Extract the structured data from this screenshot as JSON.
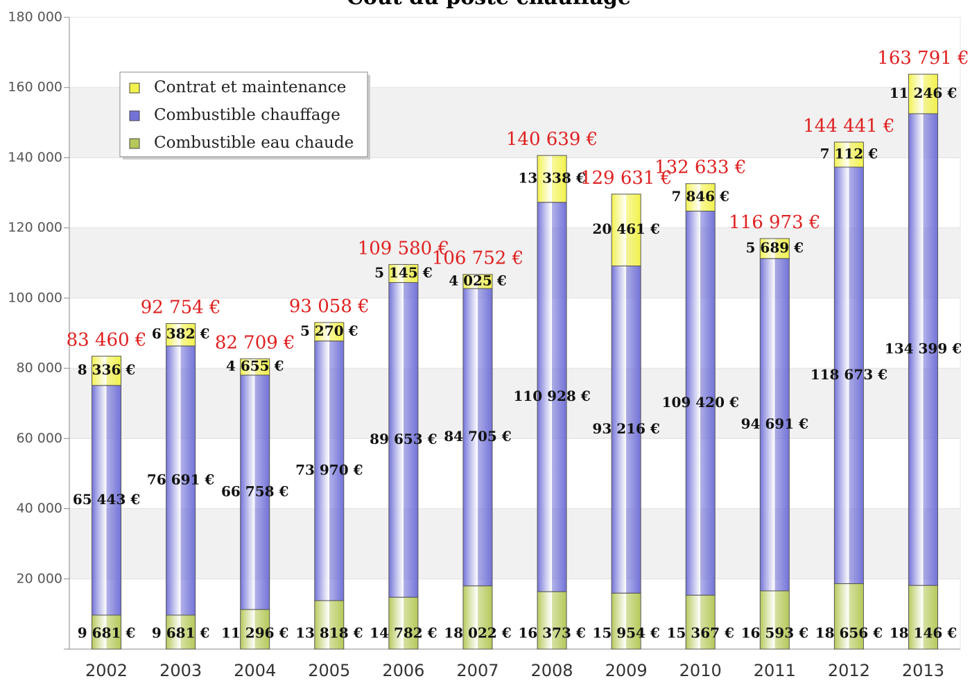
{
  "chart_data": {
    "type": "stacked_bar",
    "title": "Coût du poste chauffage",
    "categories": [
      "2002",
      "2003",
      "2004",
      "2005",
      "2006",
      "2007",
      "2008",
      "2009",
      "2010",
      "2011",
      "2012",
      "2013"
    ],
    "series": [
      {
        "name": "Combustible eau chaude",
        "color": "#b5c95a",
        "values": [
          9681,
          9681,
          11296,
          13818,
          14782,
          18022,
          16373,
          15954,
          15367,
          16593,
          18656,
          18146
        ],
        "value_labels": [
          "9 681 €",
          "9 681 €",
          "11 296 €",
          "13 818 €",
          "14 782 €",
          "18 022 €",
          "16 373 €",
          "15 954 €",
          "15 367 €",
          "16 593 €",
          "18 656 €",
          "18 146 €"
        ]
      },
      {
        "name": "Combustible chauffage",
        "color": "#7373d9",
        "values": [
          65443,
          76691,
          66758,
          73970,
          89653,
          84705,
          110928,
          93216,
          109420,
          94691,
          118673,
          134399
        ],
        "value_labels": [
          "65 443 €",
          "76 691 €",
          "66 758 €",
          "73 970 €",
          "89 653 €",
          "84 705 €",
          "110 928 €",
          "93 216 €",
          "109 420 €",
          "94 691 €",
          "118 673 €",
          "134 399 €"
        ]
      },
      {
        "name": "Contrat et maintenance",
        "color": "#f2f24d",
        "values": [
          8336,
          6382,
          4655,
          5270,
          5145,
          4025,
          13338,
          20461,
          7846,
          5689,
          7112,
          11246
        ],
        "value_labels": [
          "8 336 €",
          "6 382 €",
          "4 655 €",
          "5 270 €",
          "5 145 €",
          "4 025 €",
          "13 338 €",
          "20 461 €",
          "7 846 €",
          "5 689 €",
          "7 112 €",
          "11 246 €"
        ]
      }
    ],
    "totals": [
      83460,
      92754,
      82709,
      93058,
      109580,
      106752,
      140639,
      129631,
      132633,
      116973,
      144441,
      163791
    ],
    "total_labels": [
      "83 460 €",
      "92 754 €",
      "82 709 €",
      "93 058 €",
      "109 580 €",
      "106 752 €",
      "140 639 €",
      "129 631 €",
      "132 633 €",
      "116 973 €",
      "144 441 €",
      "163 791 €"
    ],
    "ylim": [
      0,
      180000
    ],
    "yticks": [
      {
        "value": 20000,
        "label": "20 000"
      },
      {
        "value": 40000,
        "label": "40 000"
      },
      {
        "value": 60000,
        "label": "60 000"
      },
      {
        "value": 80000,
        "label": "80 000"
      },
      {
        "value": 100000,
        "label": "100 000"
      },
      {
        "value": 120000,
        "label": "120 000"
      },
      {
        "value": 140000,
        "label": "140 000"
      },
      {
        "value": 160000,
        "label": "160 000"
      },
      {
        "value": 180000,
        "label": "180 000"
      }
    ],
    "grid": true,
    "legend": "upper left"
  }
}
